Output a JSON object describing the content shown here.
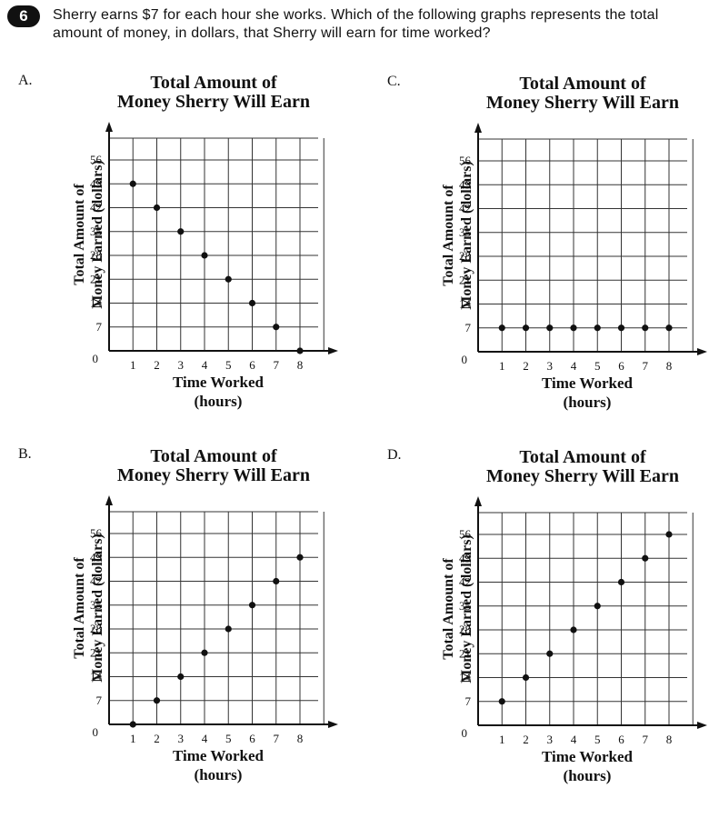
{
  "question": {
    "number": "6",
    "text": "Sherry earns $7 for each hour she works. Which of the following graphs represents the total amount of money, in dollars, that Sherry will earn for time worked?"
  },
  "chart_data": [
    {
      "option": "A.",
      "type": "scatter",
      "title_line1": "Total Amount of",
      "title_line2": "Money Sherry Will Earn",
      "xlabel_line1": "Time Worked",
      "xlabel_line2": "(hours)",
      "ylabel_line1": "Total Amount of",
      "ylabel_line2": "Money Earned (dollars)",
      "x_ticks": [
        1,
        2,
        3,
        4,
        5,
        6,
        7,
        8
      ],
      "y_ticks": [
        0,
        7,
        14,
        21,
        28,
        35,
        42,
        49,
        56
      ],
      "xlim": [
        0,
        8
      ],
      "ylim": [
        0,
        56
      ],
      "grid": true,
      "points": [
        [
          1,
          49
        ],
        [
          2,
          42
        ],
        [
          3,
          35
        ],
        [
          4,
          28
        ],
        [
          5,
          21
        ],
        [
          6,
          14
        ],
        [
          7,
          7
        ],
        [
          8,
          0
        ]
      ]
    },
    {
      "option": "C.",
      "type": "scatter",
      "title_line1": "Total Amount of",
      "title_line2": "Money Sherry Will Earn",
      "xlabel_line1": "Time Worked",
      "xlabel_line2": "(hours)",
      "ylabel_line1": "Total Amount of",
      "ylabel_line2": "Money Earned (dollars)",
      "x_ticks": [
        1,
        2,
        3,
        4,
        5,
        6,
        7,
        8
      ],
      "y_ticks": [
        0,
        7,
        14,
        21,
        28,
        35,
        42,
        49,
        56
      ],
      "xlim": [
        0,
        8
      ],
      "ylim": [
        0,
        56
      ],
      "grid": true,
      "points": [
        [
          1,
          7
        ],
        [
          2,
          7
        ],
        [
          3,
          7
        ],
        [
          4,
          7
        ],
        [
          5,
          7
        ],
        [
          6,
          7
        ],
        [
          7,
          7
        ],
        [
          8,
          7
        ]
      ]
    },
    {
      "option": "B.",
      "type": "scatter",
      "title_line1": "Total Amount of",
      "title_line2": "Money Sherry Will Earn",
      "xlabel_line1": "Time Worked",
      "xlabel_line2": "(hours)",
      "ylabel_line1": "Total Amount of",
      "ylabel_line2": "Money Earned (dollars)",
      "x_ticks": [
        1,
        2,
        3,
        4,
        5,
        6,
        7,
        8
      ],
      "y_ticks": [
        0,
        7,
        14,
        21,
        28,
        35,
        42,
        49,
        56
      ],
      "xlim": [
        0,
        8
      ],
      "ylim": [
        0,
        56
      ],
      "grid": true,
      "points": [
        [
          1,
          0
        ],
        [
          2,
          7
        ],
        [
          3,
          14
        ],
        [
          4,
          21
        ],
        [
          5,
          28
        ],
        [
          6,
          35
        ],
        [
          7,
          42
        ],
        [
          8,
          49
        ]
      ]
    },
    {
      "option": "D.",
      "type": "scatter",
      "title_line1": "Total Amount of",
      "title_line2": "Money Sherry Will Earn",
      "xlabel_line1": "Time Worked",
      "xlabel_line2": "(hours)",
      "ylabel_line1": "Total Amount of",
      "ylabel_line2": "Money Earned (dollars)",
      "x_ticks": [
        1,
        2,
        3,
        4,
        5,
        6,
        7,
        8
      ],
      "y_ticks": [
        0,
        7,
        14,
        21,
        28,
        35,
        42,
        49,
        56
      ],
      "xlim": [
        0,
        8
      ],
      "ylim": [
        0,
        56
      ],
      "grid": true,
      "points": [
        [
          1,
          7
        ],
        [
          2,
          14
        ],
        [
          3,
          21
        ],
        [
          4,
          28
        ],
        [
          5,
          35
        ],
        [
          6,
          42
        ],
        [
          7,
          49
        ],
        [
          8,
          56
        ]
      ]
    }
  ]
}
